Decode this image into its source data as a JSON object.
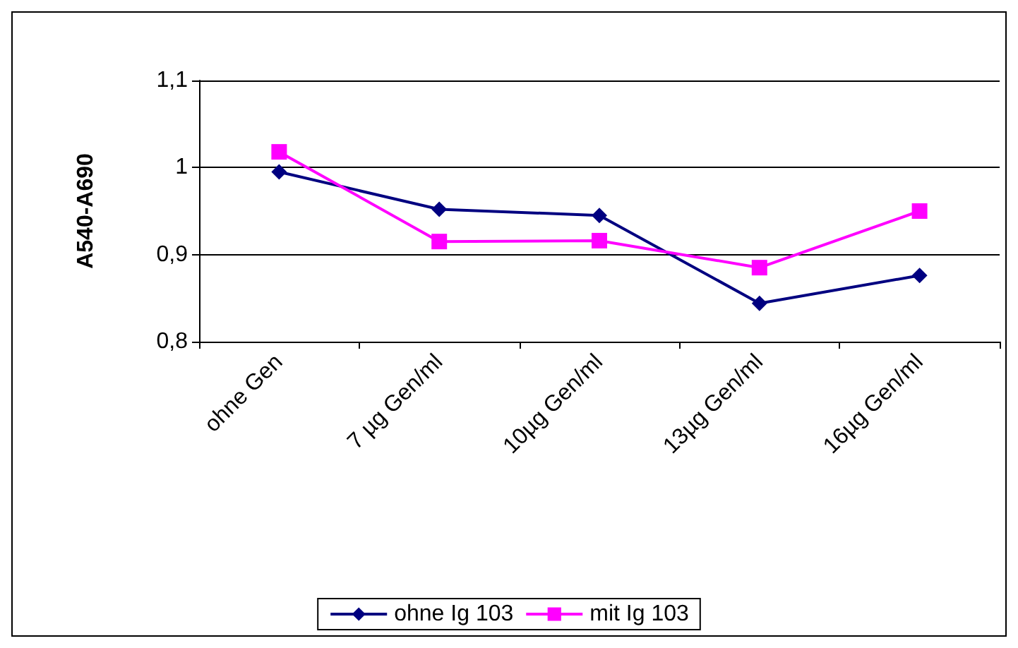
{
  "chart_data": {
    "type": "line",
    "ylabel": "A540-A690",
    "categories": [
      "ohne Gen",
      "7 µg Gen/ml",
      "10µg Gen/ml",
      "13µg Gen/ml",
      "16µg Gen/ml"
    ],
    "series": [
      {
        "name": "ohne Ig 103",
        "color": "#000080",
        "marker": "diamond",
        "values": [
          0.995,
          0.952,
          0.945,
          0.844,
          0.876
        ]
      },
      {
        "name": "mit Ig 103",
        "color": "#ff00ff",
        "marker": "square",
        "values": [
          1.018,
          0.915,
          0.916,
          0.885,
          0.95
        ]
      }
    ],
    "ylim": [
      0.8,
      1.1
    ],
    "yticks": [
      {
        "value": 0.8,
        "label": "0,8"
      },
      {
        "value": 0.9,
        "label": "0,9"
      },
      1,
      {
        "value": 1.1,
        "label": "1,1"
      }
    ],
    "grid": "y",
    "legend": "bottom"
  }
}
